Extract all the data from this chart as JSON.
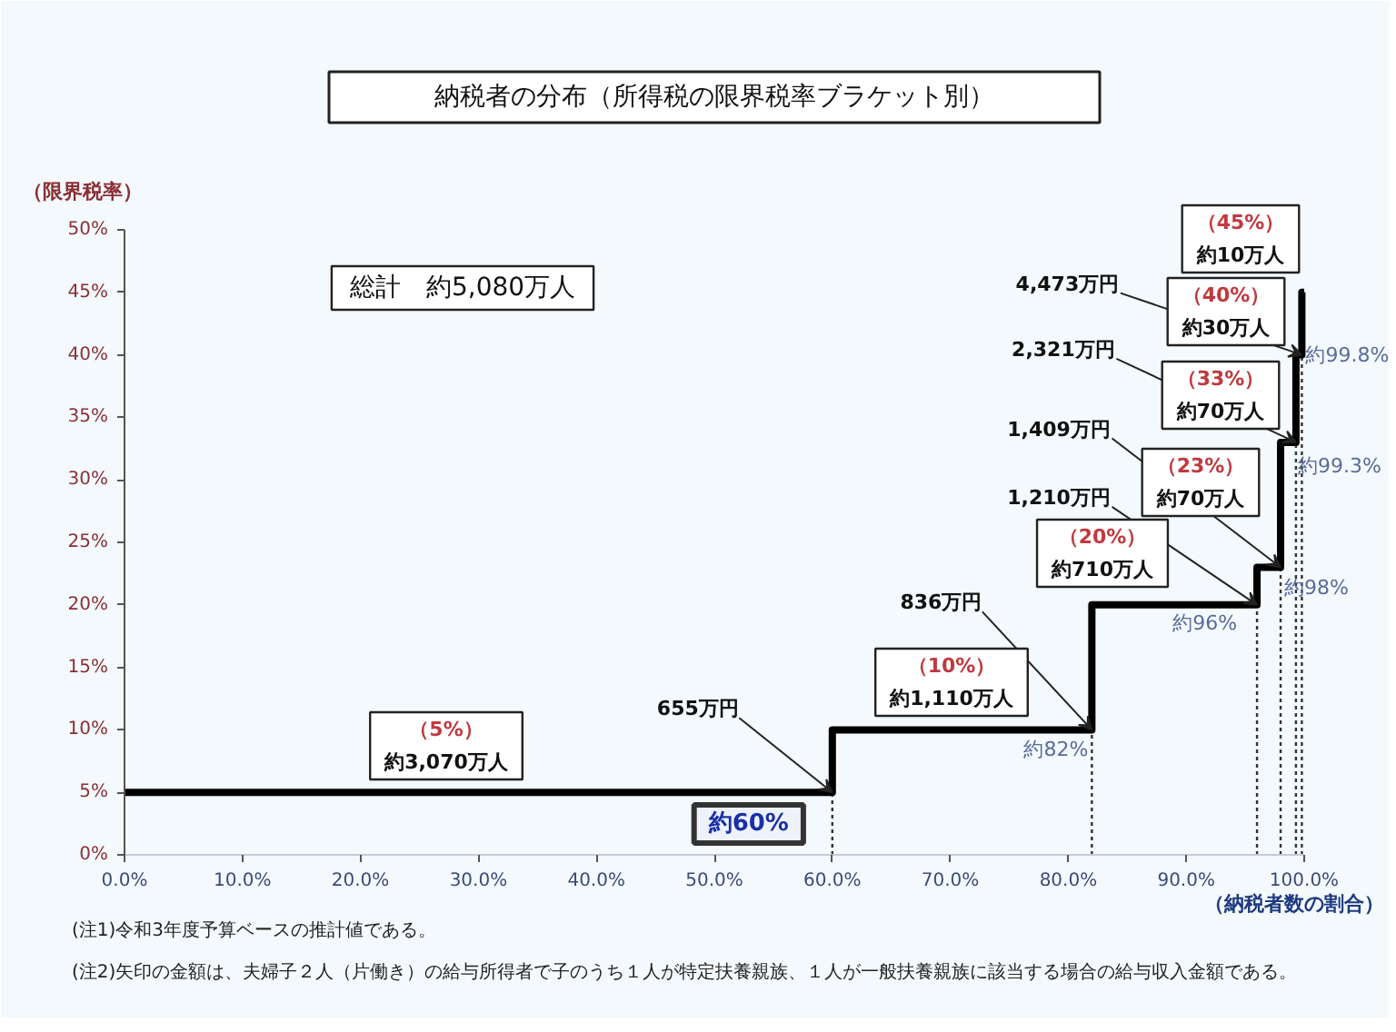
{
  "chart_data": {
    "type": "step",
    "title": "納税者の分布（所得税の限界税率ブラケット別）",
    "xlabel": "（納税者数の割合）",
    "ylabel": "（限界税率）",
    "x": [
      0,
      60,
      82,
      96,
      98,
      99.3,
      99.8,
      100
    ],
    "series": [
      {
        "color": "#000000",
        "values": [
          5,
          10,
          20,
          23,
          33,
          40,
          45,
          45
        ]
      }
    ],
    "xlim": [
      0,
      100
    ],
    "ylim": [
      0,
      50
    ],
    "xticks": [
      {
        "value": 0,
        "label": "0.0%"
      },
      {
        "value": 10,
        "label": "10.0%"
      },
      {
        "value": 20,
        "label": "20.0%"
      },
      {
        "value": 30,
        "label": "30.0%"
      },
      {
        "value": 40,
        "label": "40.0%"
      },
      {
        "value": 50,
        "label": "50.0%"
      },
      {
        "value": 60,
        "label": "60.0%"
      },
      {
        "value": 70,
        "label": "70.0%"
      },
      {
        "value": 80,
        "label": "80.0%"
      },
      {
        "value": 90,
        "label": "90.0%"
      },
      {
        "value": 100,
        "label": "100.0%"
      }
    ],
    "yticks": [
      {
        "value": 0,
        "label": "0%"
      },
      {
        "value": 5,
        "label": "5%"
      },
      {
        "value": 10,
        "label": "10%"
      },
      {
        "value": 15,
        "label": "15%"
      },
      {
        "value": 20,
        "label": "20%"
      },
      {
        "value": 25,
        "label": "25%"
      },
      {
        "value": 30,
        "label": "30%"
      },
      {
        "value": 35,
        "label": "35%"
      },
      {
        "value": 40,
        "label": "40%"
      },
      {
        "value": 45,
        "label": "45%"
      },
      {
        "value": 50,
        "label": "50%"
      }
    ],
    "ref_lines": [
      {
        "axis": "x",
        "value": 60,
        "label": "約60%",
        "color": "#333333",
        "line_style": "dotted"
      },
      {
        "axis": "x",
        "value": 82,
        "label": "約82%",
        "color": "#333333",
        "line_style": "dotted"
      },
      {
        "axis": "x",
        "value": 96,
        "label": "約96%",
        "color": "#333333",
        "line_style": "dotted"
      },
      {
        "axis": "x",
        "value": 98,
        "label": "約98%",
        "color": "#333333",
        "line_style": "dotted"
      },
      {
        "axis": "x",
        "value": 99.3,
        "label": "約99.3%",
        "color": "#333333",
        "line_style": "dotted"
      },
      {
        "axis": "x",
        "value": 99.8,
        "label": "約99.8%",
        "color": "#333333",
        "line_style": "dotted"
      }
    ],
    "annotations": [
      "総計　約5,080万人",
      "（5%）",
      "約3,070万人",
      "（10%）",
      "約1,110万人",
      "（20%）",
      "約710万人",
      "（23%）",
      "約70万人",
      "（33%）",
      "約70万人",
      "（40%）",
      "約30万人",
      "（45%）",
      "約10万人",
      {
        "text": "655万円",
        "x": 60,
        "y": 5
      },
      {
        "text": "836万円",
        "x": 82,
        "y": 10
      },
      {
        "text": "1,210万円",
        "x": 96,
        "y": 20
      },
      {
        "text": "1,409万円",
        "x": 98,
        "y": 23
      },
      {
        "text": "2,321万円",
        "x": 99.3,
        "y": 33
      },
      {
        "text": "4,473万円",
        "x": 99.8,
        "y": 40
      },
      "(注1)令和3年度予算ベースの推計値である。",
      "(注2)矢印の金額は、夫婦子２人（片働き）の給与所得者で子のうち１人が特定扶養親族、１人が一般扶養親族に該当する場合の給与収入金額である。"
    ]
  }
}
